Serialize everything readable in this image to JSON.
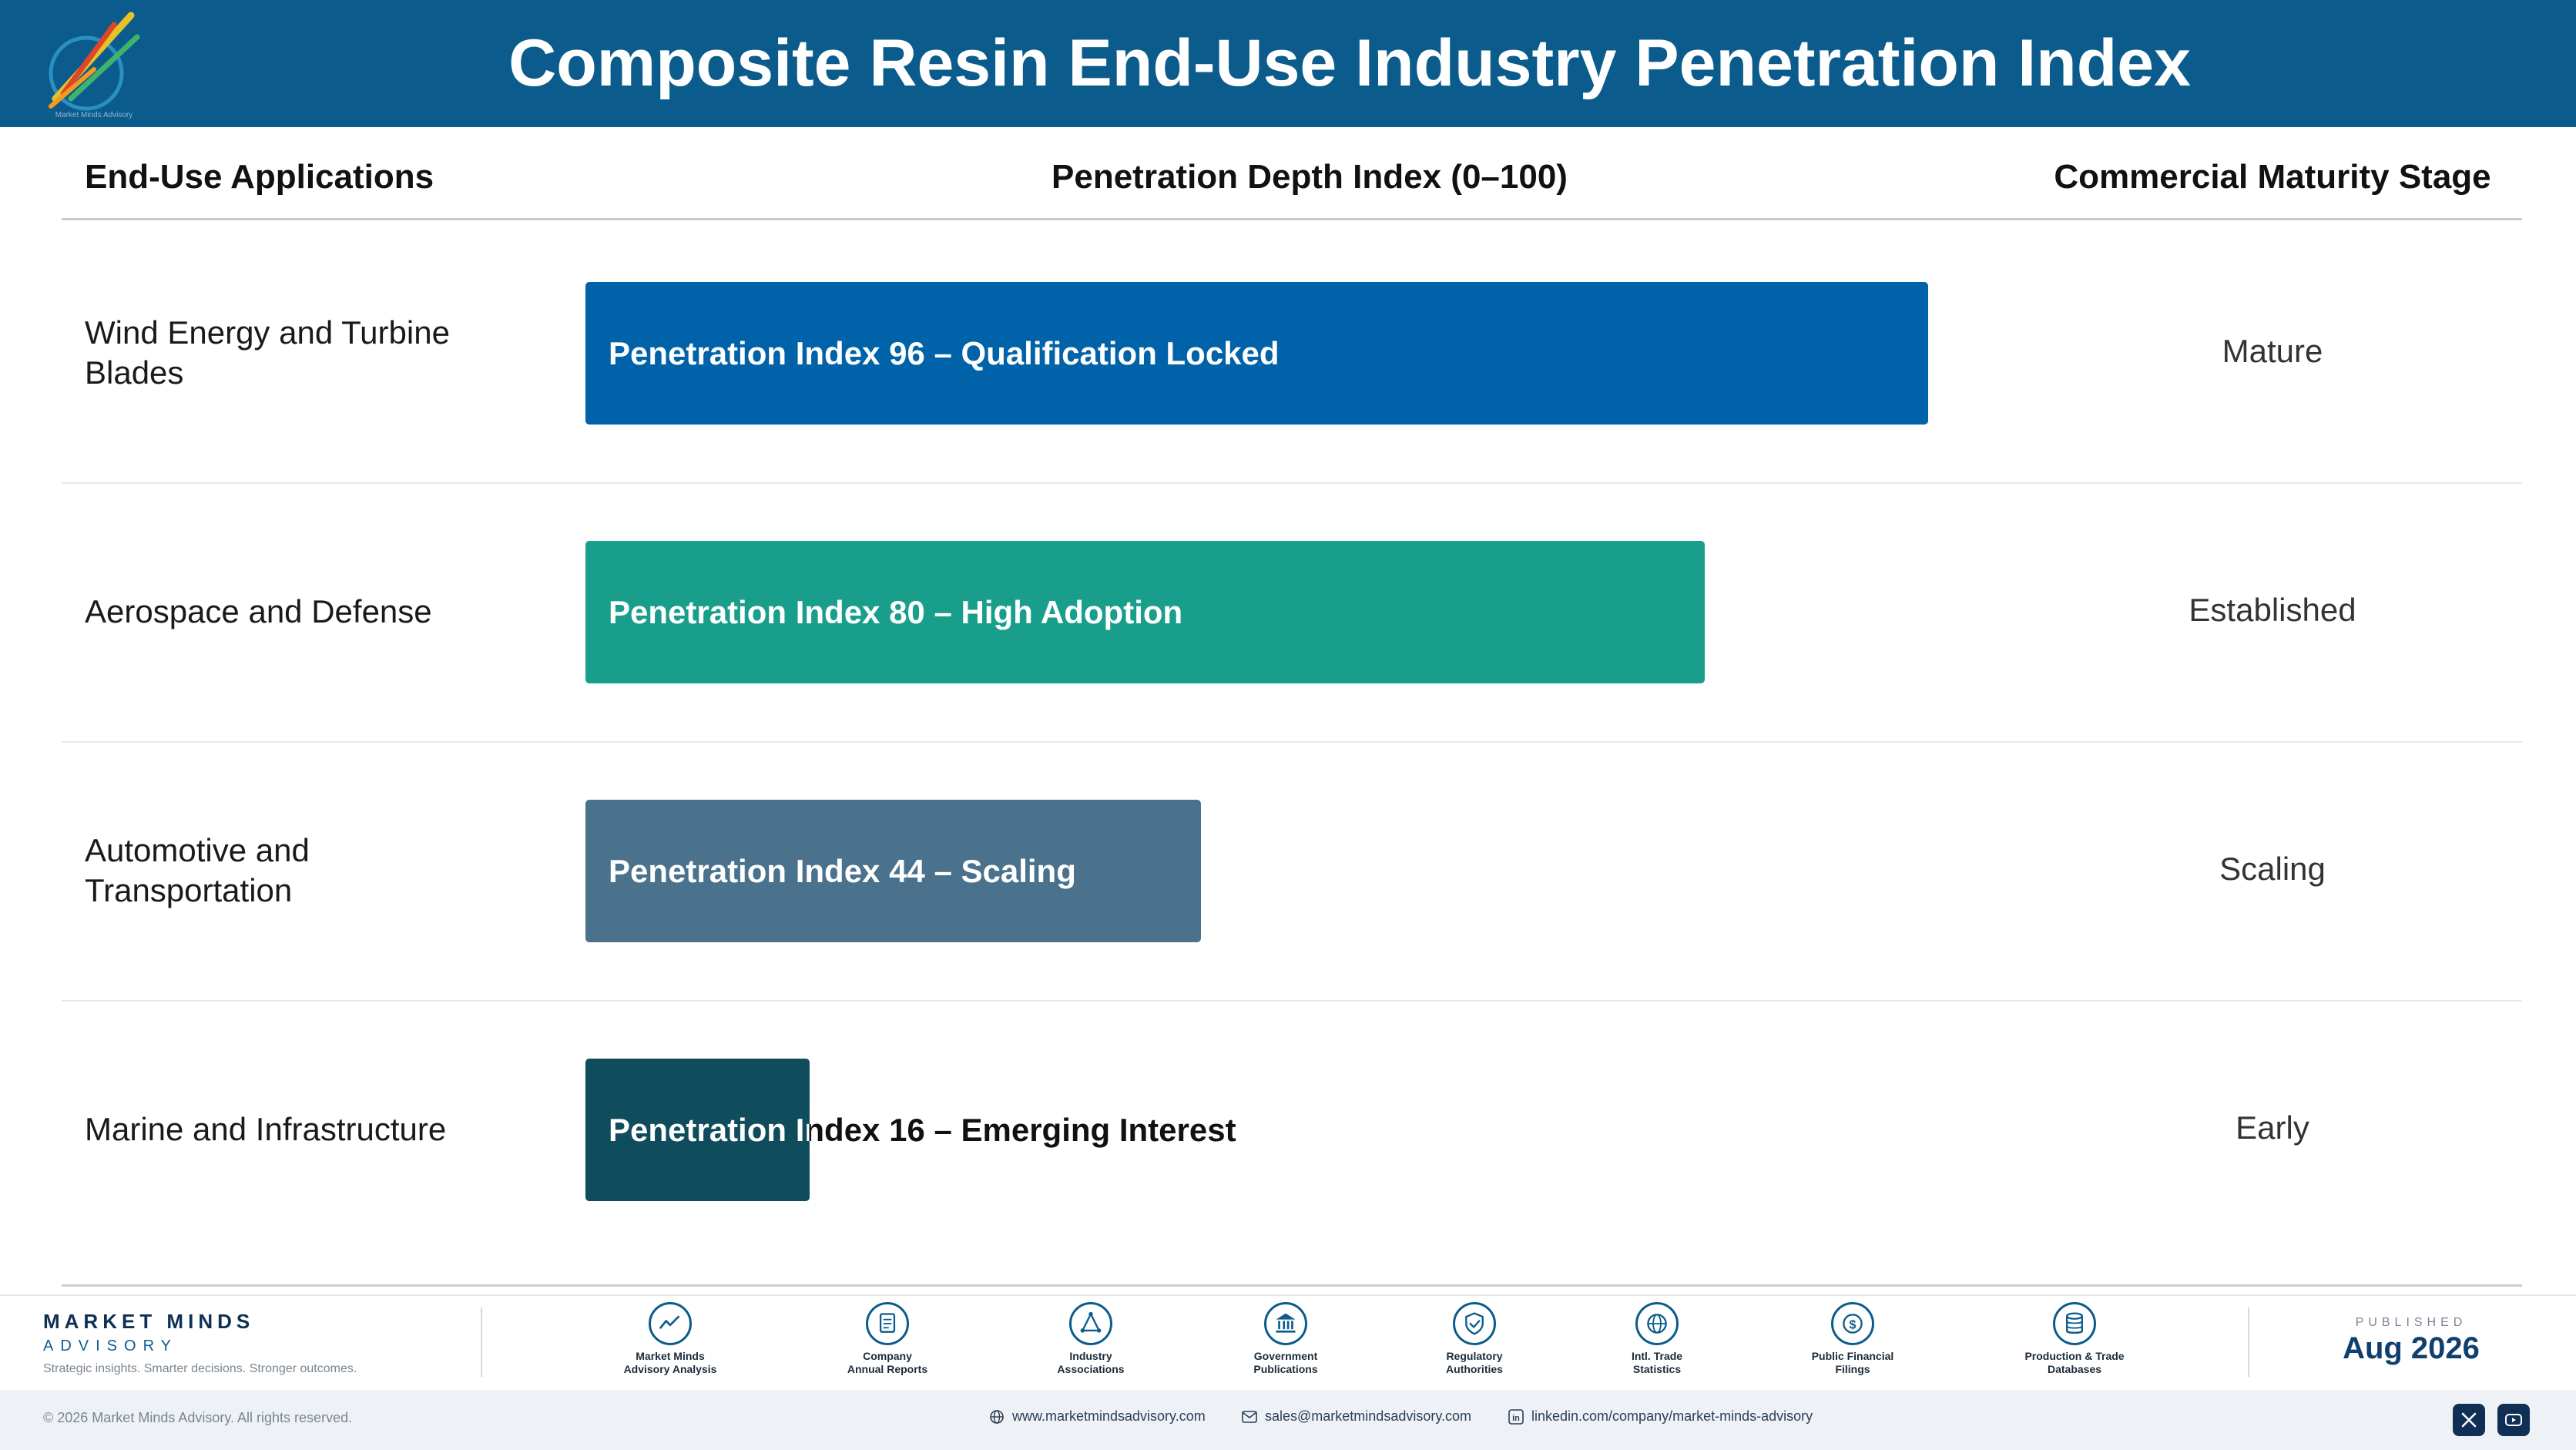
{
  "header": {
    "title": "Composite Resin End-Use Industry Penetration Index",
    "logo_text": "Market Minds Advisory"
  },
  "columns": {
    "applications": "End-Use Applications",
    "index": "Penetration Depth Index (0–100)",
    "stage": "Commercial Maturity Stage"
  },
  "chart_data": {
    "type": "bar",
    "orientation": "horizontal",
    "title": "Composite Resin End-Use Industry Penetration Index",
    "xlabel": "Penetration Depth Index (0–100)",
    "xlim": [
      0,
      100
    ],
    "grid": false,
    "categories": [
      "Wind Energy and Turbine Blades",
      "Aerospace and Defense",
      "Automotive and Transportation",
      "Marine and Infrastructure"
    ],
    "values": [
      96,
      80,
      44,
      16
    ],
    "data_labels": [
      "Penetration Index 96 – Qualification Locked",
      "Penetration Index 80 – High Adoption",
      "Penetration Index 44 – Scaling",
      "Penetration Index 16 – Emerging Interest"
    ],
    "stages": [
      "Mature",
      "Established",
      "Scaling",
      "Early"
    ],
    "colors": [
      "#0062a8",
      "#1a9e8c",
      "#4a728c",
      "#0f4c5c"
    ]
  },
  "footer": {
    "brand_name": "MARKET MINDS",
    "brand_sub": "ADVISORY",
    "tagline": "Strategic insights. Smarter decisions. Stronger outcomes.",
    "sources": [
      {
        "icon": "trend-chart-icon",
        "label_1": "Market Minds",
        "label_2": "Advisory Analysis"
      },
      {
        "icon": "document-icon",
        "label_1": "Company",
        "label_2": "Annual Reports"
      },
      {
        "icon": "network-icon",
        "label_1": "Industry",
        "label_2": "Associations"
      },
      {
        "icon": "government-building-icon",
        "label_1": "Government",
        "label_2": "Publications"
      },
      {
        "icon": "shield-check-icon",
        "label_1": "Regulatory",
        "label_2": "Authorities"
      },
      {
        "icon": "globe-icon",
        "label_1": "Intl. Trade",
        "label_2": "Statistics"
      },
      {
        "icon": "dollar-coin-icon",
        "label_1": "Public Financial",
        "label_2": "Filings"
      },
      {
        "icon": "database-icon",
        "label_1": "Production & Trade",
        "label_2": "Databases"
      }
    ],
    "published_label": "PUBLISHED",
    "published_date": "Aug 2026",
    "copyright": "© 2026 Market Minds Advisory. All rights reserved.",
    "website": "www.marketmindsadvisory.com",
    "email": "sales@marketmindsadvisory.com",
    "linkedin": "linkedin.com/company/market-minds-advisory"
  }
}
